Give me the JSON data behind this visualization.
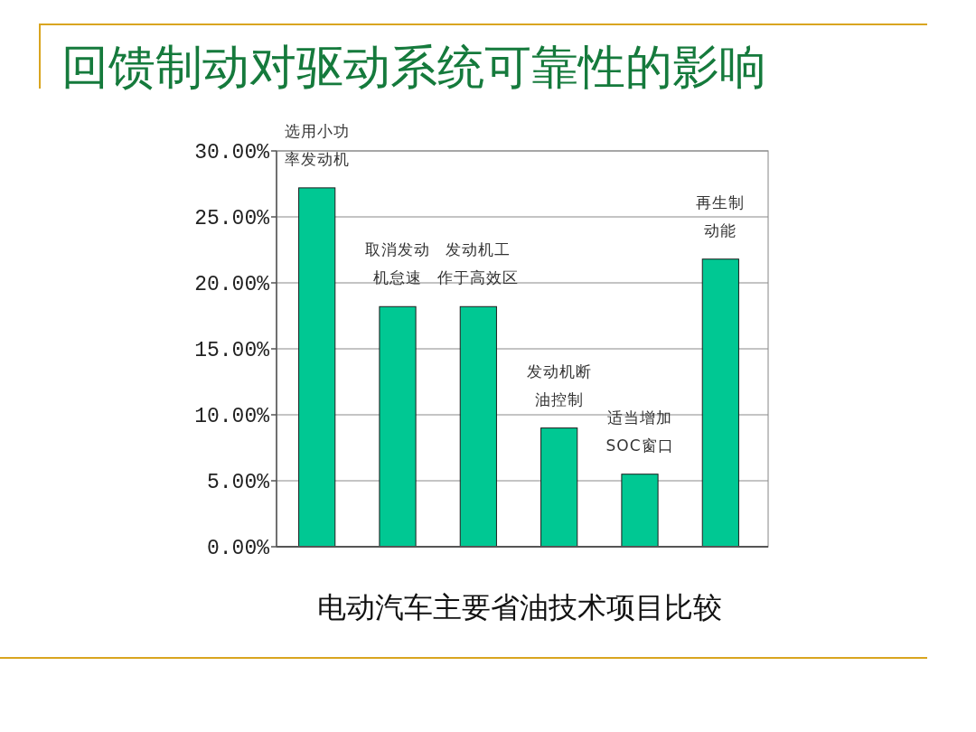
{
  "chart_data": {
    "type": "bar",
    "title": "回馈制动对驱动系统可靠性的影响",
    "xlabel": "电动汽车主要省油技术项目比较",
    "categories": [
      "选用小功率发动机",
      "取消发动机怠速",
      "发动机工作于高效区",
      "发动机断油控制",
      "适当增加SOC窗口",
      "再生制动能"
    ],
    "values": [
      27.2,
      18.2,
      18.2,
      9.0,
      5.5,
      21.8
    ],
    "color": "#00c893",
    "ylim": [
      0,
      30
    ],
    "yticks": [
      {
        "value": 0,
        "label": "0.00%"
      },
      {
        "value": 5,
        "label": "5.00%"
      },
      {
        "value": 10,
        "label": "10.00%"
      },
      {
        "value": 15,
        "label": "15.00%"
      },
      {
        "value": 20,
        "label": "20.00%"
      },
      {
        "value": 25,
        "label": "25.00%"
      },
      {
        "value": 30,
        "label": "30.00%"
      }
    ],
    "grid": "y"
  }
}
